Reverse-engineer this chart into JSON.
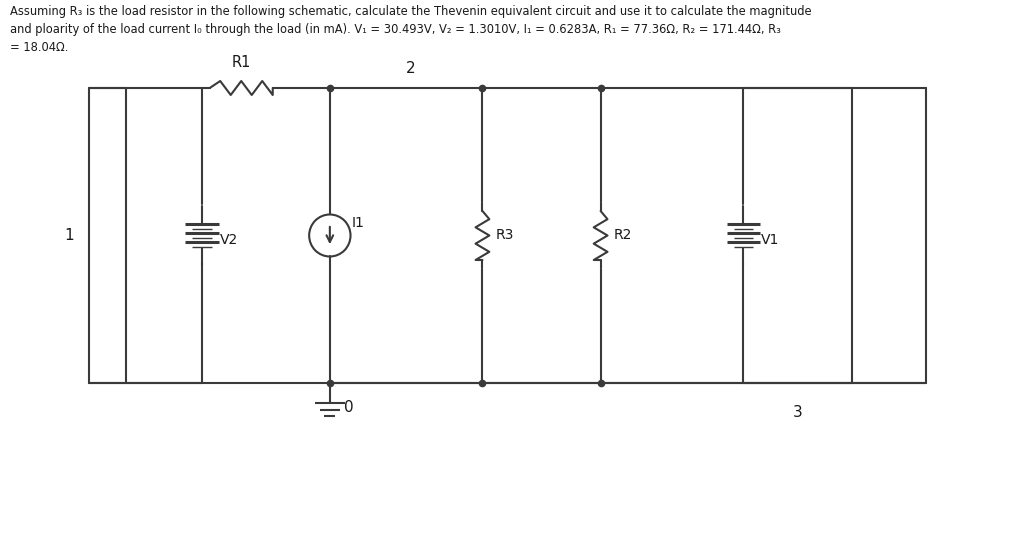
{
  "title_line1": "Assuming R₃ is the load resistor in the following schematic, calculate the Thevenin equivalent circuit and use it to calculate the magnitude",
  "title_line2": "and ploarity of the load current I₀ through the load (in mA). V₁ = 30.493V, V₂ = 1.3010V, I₁ = 0.6283A, R₁ = 77.36Ω, R₂ = 171.44Ω, R₃",
  "title_line3": "= 18.04Ω.",
  "bg_color": "#ffffff",
  "line_color": "#3a3a3a",
  "label_color": "#1a1a1a",
  "node_label_1": "1",
  "node_label_2": "2",
  "node_label_3": "3",
  "node_label_0": "0",
  "R1_label": "R1",
  "R2_label": "R2",
  "R3_label": "R3",
  "V1_label": "V1",
  "V2_label": "V2",
  "I1_label": "I1"
}
